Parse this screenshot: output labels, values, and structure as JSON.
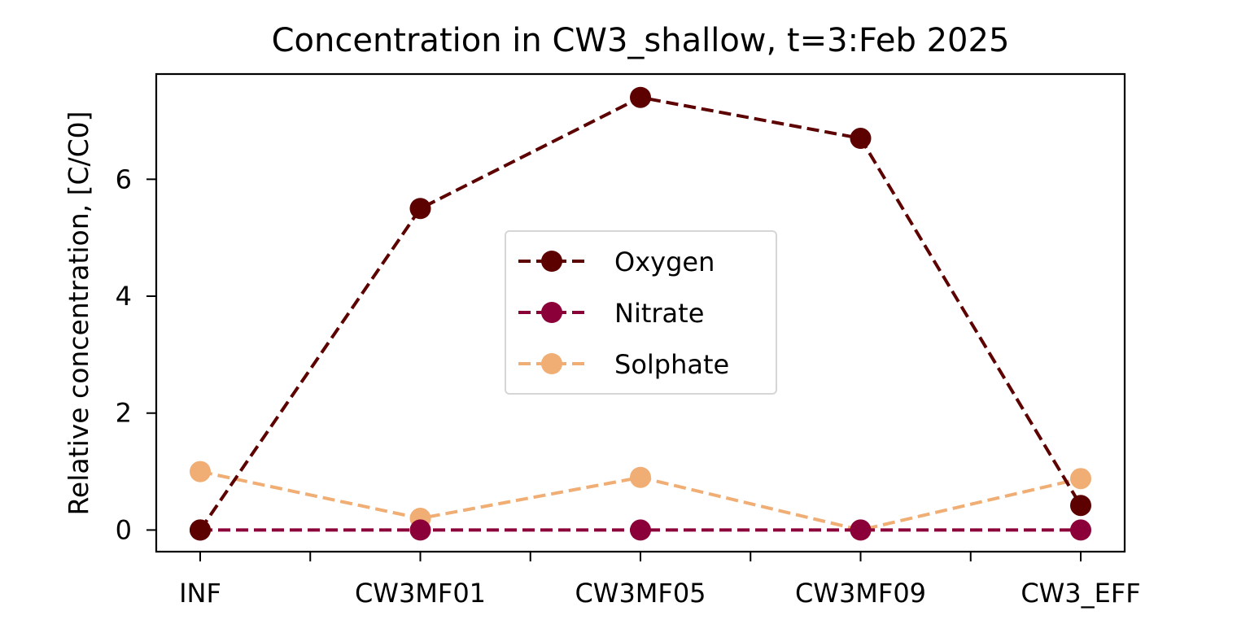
{
  "chart_data": {
    "type": "line",
    "title": "Concentration in CW3_shallow, t=3:Feb 2025",
    "xlabel": "",
    "ylabel": "Relative concentration, [C/C0]",
    "categories": [
      "INF",
      "CW3MF01",
      "CW3MF05",
      "CW3MF09",
      "CW3_EFF"
    ],
    "y_ticks": [
      "0",
      "2",
      "4",
      "6"
    ],
    "ylim": [
      -0.37,
      7.8
    ],
    "grid": false,
    "legend_position": "center",
    "series": [
      {
        "name": "Oxygen",
        "color": "#5c0000",
        "values": [
          0.0,
          5.5,
          7.4,
          6.7,
          0.42
        ]
      },
      {
        "name": "Nitrate",
        "color": "#8b0038",
        "values": [
          0.0,
          0.0,
          0.0,
          0.0,
          0.0
        ]
      },
      {
        "name": "Solphate",
        "color": "#f0ad74",
        "values": [
          1.0,
          0.2,
          0.9,
          0.0,
          0.88
        ]
      }
    ]
  }
}
